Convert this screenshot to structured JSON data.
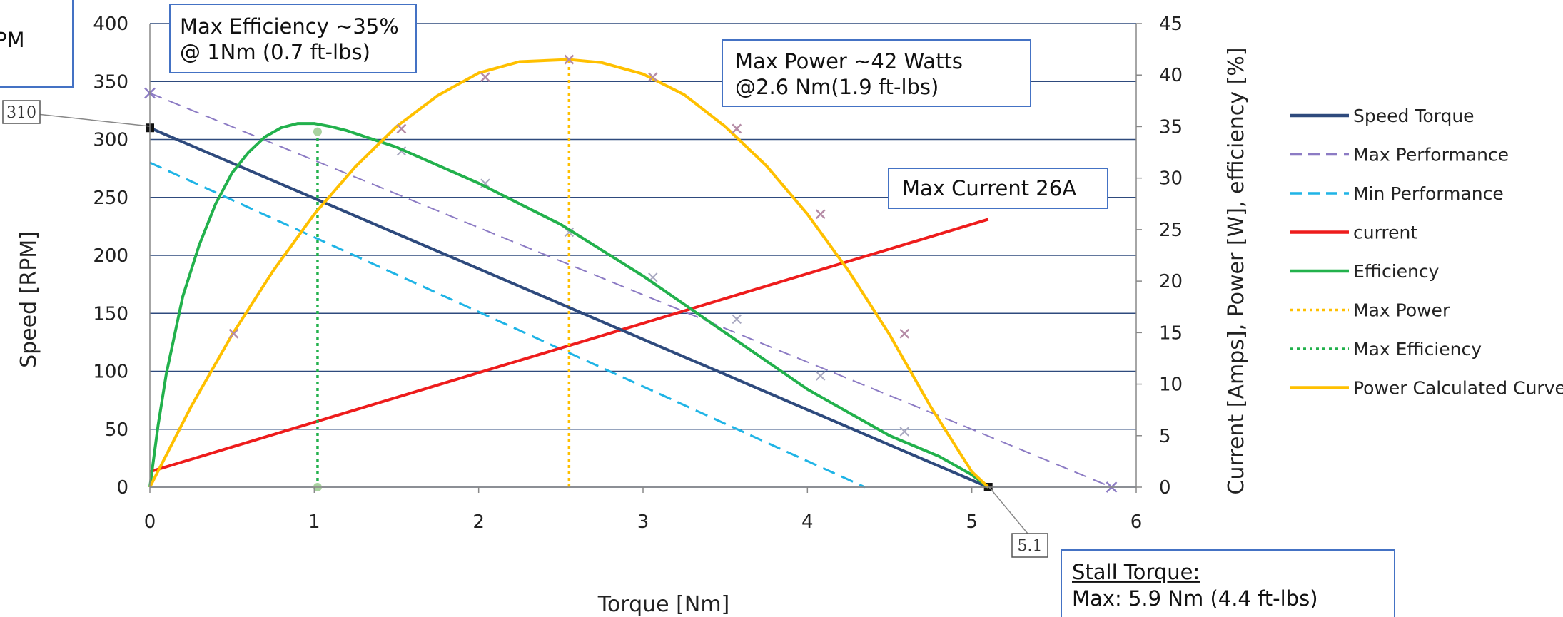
{
  "chart_data": {
    "type": "line",
    "xlabel": "Torque [Nm]",
    "ylabel_left": "Speed [RPM]",
    "ylabel_right": "Current [Amps], Power [W], efficiency [%]",
    "xlim": [
      0,
      6
    ],
    "ylim_left": [
      0,
      400
    ],
    "ylim_right": [
      0,
      45
    ],
    "x_ticks": [
      "0",
      "1",
      "2",
      "3",
      "4",
      "5",
      "6"
    ],
    "y_left_ticks": [
      "0",
      "50",
      "100",
      "150",
      "200",
      "250",
      "300",
      "350",
      "400"
    ],
    "y_right_ticks": [
      "0",
      "5",
      "10",
      "15",
      "20",
      "25",
      "30",
      "35",
      "40",
      "45"
    ],
    "grid": "horizontal",
    "legend_position": "right",
    "series": [
      {
        "name": "Speed Torque",
        "axis": "left",
        "style": "solid",
        "color": "#2E4A7D",
        "x": [
          0,
          5.1
        ],
        "y": [
          310,
          0
        ]
      },
      {
        "name": "Max Performance",
        "axis": "left",
        "style": "dashed",
        "color": "#8C7BC4",
        "x": [
          0,
          0.5,
          1.0,
          1.5,
          2.0,
          2.5,
          3.0,
          3.5,
          4.0,
          4.5,
          5.0,
          5.85
        ],
        "y": [
          340,
          311,
          282,
          253,
          224,
          195,
          166,
          137,
          108,
          79,
          50,
          0
        ],
        "marker_x": [
          0,
          5.85
        ],
        "marker_y": [
          340,
          0
        ]
      },
      {
        "name": "Min Performance",
        "axis": "left",
        "style": "dashed",
        "color": "#1FB4E6",
        "x": [
          0,
          4.35
        ],
        "y": [
          280,
          0
        ]
      },
      {
        "name": "current",
        "axis": "right",
        "style": "solid",
        "color": "#EE1C1C",
        "x": [
          0,
          5.1
        ],
        "y": [
          1.5,
          26
        ]
      },
      {
        "name": "Efficiency",
        "axis": "right",
        "style": "solid",
        "color": "#22B14C",
        "x": [
          0,
          0.05,
          0.1,
          0.2,
          0.3,
          0.4,
          0.5,
          0.6,
          0.7,
          0.8,
          0.9,
          1.0,
          1.1,
          1.2,
          1.5,
          2.0,
          2.5,
          3.0,
          3.5,
          4.0,
          4.5,
          4.8,
          5.0,
          5.1
        ],
        "y": [
          0,
          6,
          11,
          18.5,
          23.5,
          27.5,
          30.5,
          32.5,
          34,
          34.9,
          35.3,
          35.3,
          35.0,
          34.6,
          33,
          29.5,
          25.5,
          20.5,
          15,
          9.5,
          5,
          3,
          1.2,
          0
        ]
      },
      {
        "name": "Max Power",
        "axis": "right",
        "style": "dotted",
        "color": "#FFC000",
        "x": [
          2.55,
          2.55
        ],
        "y": [
          0,
          41.5
        ]
      },
      {
        "name": "Max Efficiency",
        "axis": "right",
        "style": "dotted",
        "color": "#22B14C",
        "x": [
          1.02,
          1.02
        ],
        "y": [
          0,
          34.5
        ],
        "marker_y": [
          0,
          34.5
        ]
      },
      {
        "name": "Power Calculated Curve",
        "axis": "right",
        "style": "solid",
        "color": "#FFC000",
        "x": [
          0,
          0.25,
          0.5,
          0.75,
          1.0,
          1.25,
          1.5,
          1.75,
          2.0,
          2.25,
          2.55,
          2.75,
          3.0,
          3.25,
          3.5,
          3.75,
          4.0,
          4.25,
          4.5,
          4.75,
          5.0,
          5.1
        ],
        "y": [
          0,
          7.8,
          14.8,
          21,
          26.5,
          31.1,
          35,
          38,
          40.2,
          41.3,
          41.5,
          41.2,
          40.1,
          38.1,
          35,
          31.2,
          26.5,
          21,
          14.8,
          7.8,
          1.5,
          0
        ],
        "marker_x": [
          0.51,
          1.53,
          2.04,
          2.55,
          3.06,
          3.57,
          4.08,
          4.59
        ],
        "marker_y": [
          14.9,
          34.8,
          39.8,
          41.5,
          39.8,
          34.8,
          26.5,
          14.9
        ]
      }
    ],
    "faint_markers": {
      "color": "#A8A8C0",
      "x": [
        1.53,
        2.04,
        2.55,
        3.06,
        3.57,
        4.08,
        4.59
      ],
      "y_left": [
        290,
        262,
        220,
        181,
        145,
        96,
        48
      ]
    },
    "annotations": [
      {
        "id": "max-efficiency",
        "lines": [
          "Max Efficiency ~35%",
          "@ 1Nm (0.7 ft-lbs)"
        ]
      },
      {
        "id": "max-power",
        "lines": [
          "Max Power ~42 Watts",
          "@2.6 Nm(1.9 ft-lbs)"
        ]
      },
      {
        "id": "max-current",
        "lines": [
          "Max Current 26A"
        ]
      },
      {
        "id": "stall-torque",
        "lines": [
          "Stall Torque:",
          "Max: 5.9 Nm (4.4 ft-lbs)"
        ]
      },
      {
        "id": "partial-top-left",
        "lines": [
          "PM"
        ]
      }
    ],
    "point_labels": [
      {
        "id": "no-load-speed",
        "text": "310",
        "x": 0,
        "y": 310
      },
      {
        "id": "stall-point",
        "text": "5.1",
        "x": 5.1,
        "y": 0
      }
    ]
  }
}
